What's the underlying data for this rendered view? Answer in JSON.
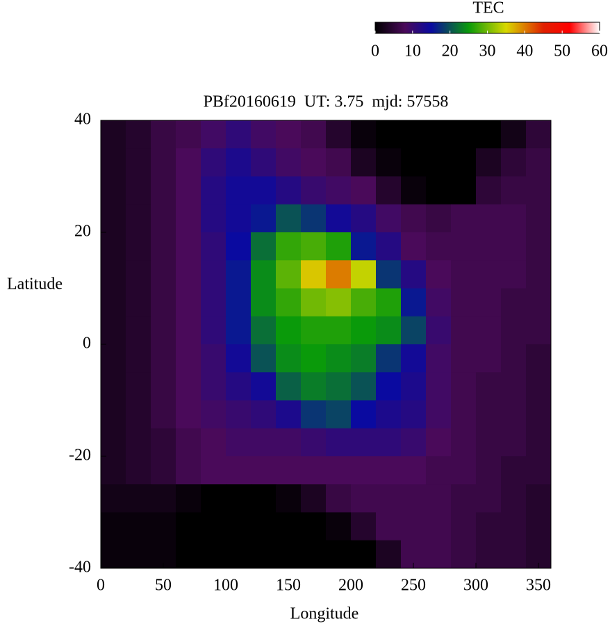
{
  "chart_data": {
    "type": "heatmap",
    "title": "PBf20160619  UT: 3.75  mjd: 57558",
    "x_label": "Longitude",
    "y_label": "Latitude",
    "xlim": [
      0,
      360
    ],
    "xticks": [
      0,
      50,
      100,
      150,
      200,
      250,
      300,
      350
    ],
    "ylim": [
      -40,
      40
    ],
    "yticks": [
      -40,
      -20,
      0,
      20,
      40
    ],
    "x": [
      10,
      30,
      50,
      70,
      90,
      110,
      130,
      150,
      170,
      190,
      210,
      230,
      250,
      270,
      290,
      310,
      330,
      350
    ],
    "y": [
      37.5,
      32.5,
      27.5,
      22.5,
      17.5,
      12.5,
      7.5,
      2.5,
      -2.5,
      -7.5,
      -12.5,
      -17.5,
      -22.5,
      -27.5,
      -32.5,
      -37.5
    ],
    "z": [
      [
        3,
        4,
        6,
        7,
        9,
        11,
        9,
        8,
        7,
        4,
        1,
        0,
        0,
        0,
        0,
        0,
        2,
        5
      ],
      [
        3,
        4,
        6,
        8,
        11,
        13,
        11,
        9,
        8,
        7,
        3,
        1,
        0,
        0,
        0,
        3,
        5,
        6
      ],
      [
        3,
        4,
        6,
        8,
        12,
        14,
        14,
        12,
        10,
        9,
        8,
        4,
        1,
        0,
        0,
        5,
        6,
        6
      ],
      [
        3,
        4,
        6,
        8,
        12,
        14,
        16,
        20,
        18,
        14,
        12,
        9,
        7,
        6,
        7,
        7,
        7,
        6
      ],
      [
        3,
        4,
        6,
        8,
        11,
        15,
        22,
        27,
        28,
        26,
        16,
        12,
        8,
        7,
        7,
        7,
        7,
        6
      ],
      [
        3,
        4,
        6,
        8,
        11,
        16,
        24,
        29,
        36,
        40,
        34,
        18,
        12,
        8,
        7,
        7,
        7,
        6
      ],
      [
        3,
        4,
        6,
        8,
        11,
        16,
        24,
        27,
        30,
        31,
        28,
        26,
        16,
        9,
        7,
        7,
        6,
        6
      ],
      [
        3,
        4,
        6,
        8,
        11,
        16,
        22,
        25,
        26,
        26,
        25,
        24,
        19,
        10,
        7,
        7,
        6,
        6
      ],
      [
        3,
        4,
        6,
        8,
        10,
        14,
        20,
        24,
        25,
        24,
        23,
        18,
        14,
        9,
        7,
        7,
        6,
        5
      ],
      [
        3,
        4,
        6,
        8,
        10,
        12,
        14,
        21,
        23,
        22,
        20,
        15,
        13,
        9,
        7,
        6,
        6,
        5
      ],
      [
        3,
        4,
        6,
        8,
        9,
        10,
        11,
        13,
        18,
        19,
        15,
        13,
        12,
        9,
        7,
        6,
        6,
        5
      ],
      [
        3,
        4,
        5,
        7,
        8,
        9,
        9,
        9,
        10,
        11,
        11,
        11,
        10,
        8,
        7,
        6,
        6,
        5
      ],
      [
        3,
        4,
        5,
        7,
        8,
        8,
        8,
        8,
        8,
        8,
        8,
        8,
        8,
        7,
        7,
        6,
        5,
        5
      ],
      [
        2,
        2,
        2,
        1,
        0,
        0,
        0,
        1,
        3,
        6,
        7,
        7,
        7,
        7,
        6,
        6,
        5,
        4
      ],
      [
        1,
        1,
        1,
        0,
        0,
        0,
        0,
        0,
        0,
        1,
        4,
        7,
        7,
        7,
        6,
        5,
        5,
        4
      ],
      [
        1,
        1,
        1,
        0,
        0,
        0,
        0,
        0,
        0,
        0,
        0,
        3,
        7,
        7,
        6,
        5,
        5,
        4
      ]
    ],
    "colorbar": {
      "title": "TEC",
      "lim": [
        0,
        60
      ],
      "ticks": [
        0,
        10,
        20,
        30,
        40,
        50,
        60
      ],
      "colormap": [
        {
          "value": 0,
          "color": "#000000"
        },
        {
          "value": 8,
          "color": "#4a0a5a"
        },
        {
          "value": 15,
          "color": "#0a0aa0"
        },
        {
          "value": 25,
          "color": "#0a9a0a"
        },
        {
          "value": 35,
          "color": "#d8d800"
        },
        {
          "value": 45,
          "color": "#e02000"
        },
        {
          "value": 52,
          "color": "#ff0000"
        },
        {
          "value": 60,
          "color": "#ffffff"
        }
      ]
    }
  }
}
